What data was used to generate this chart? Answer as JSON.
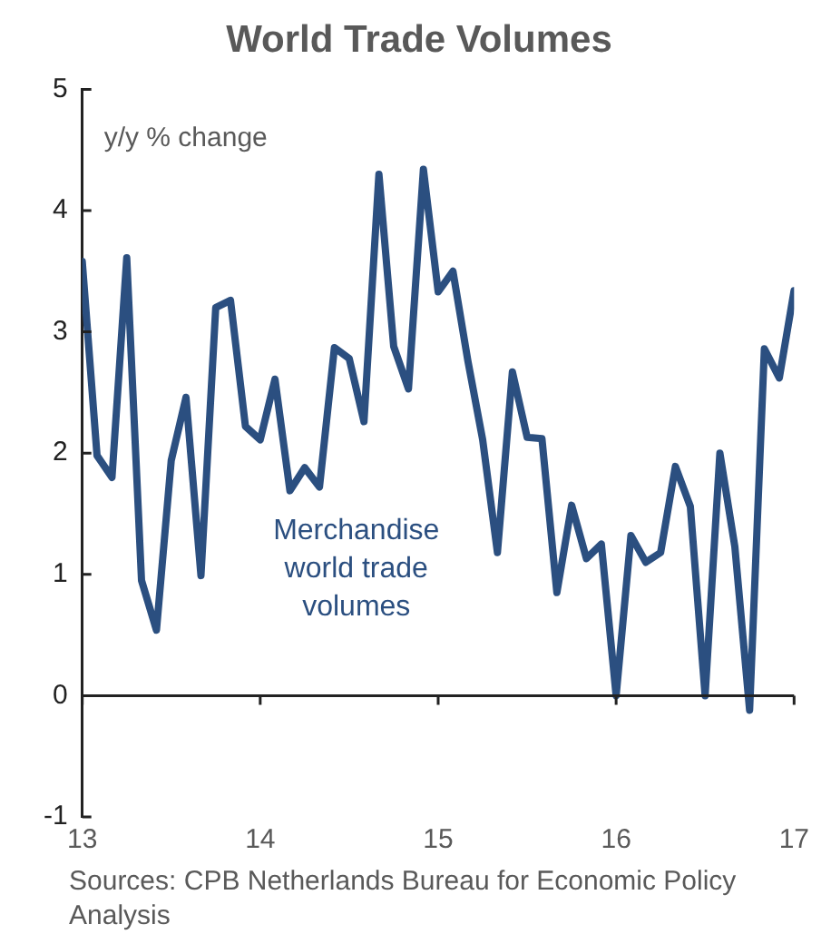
{
  "chart_data": {
    "type": "line",
    "title": "World Trade Volumes",
    "ylabel": "y/y % change",
    "x": [
      13,
      13.083,
      13.167,
      13.25,
      13.333,
      13.417,
      13.5,
      13.583,
      13.667,
      13.75,
      13.833,
      13.917,
      14,
      14.083,
      14.167,
      14.25,
      14.333,
      14.417,
      14.5,
      14.583,
      14.667,
      14.75,
      14.833,
      14.917,
      15,
      15.083,
      15.167,
      15.25,
      15.333,
      15.417,
      15.5,
      15.583,
      15.667,
      15.75,
      15.833,
      15.917,
      16,
      16.083,
      16.167,
      16.25,
      16.333,
      16.417,
      16.5,
      16.583,
      16.667,
      16.75,
      16.833,
      16.917,
      17
    ],
    "series": [
      {
        "name": "Merchandise world trade volumes",
        "color": "#2b4f80",
        "values": [
          3.58,
          1.98,
          1.8,
          3.61,
          0.95,
          0.54,
          1.94,
          2.46,
          0.99,
          3.2,
          3.26,
          2.22,
          2.11,
          2.61,
          1.69,
          1.88,
          1.72,
          2.87,
          2.78,
          2.26,
          4.3,
          2.88,
          2.53,
          4.34,
          3.33,
          3.5,
          2.76,
          2.11,
          1.18,
          2.67,
          2.13,
          2.12,
          0.85,
          1.57,
          1.13,
          1.25,
          0,
          1.32,
          1.1,
          1.18,
          1.89,
          1.56,
          0,
          2,
          1.23,
          -0.12,
          2.86,
          2.62,
          3.34
        ]
      }
    ],
    "xlim": [
      13,
      17
    ],
    "xticks": [
      13,
      14,
      15,
      16,
      17
    ],
    "ylim": [
      -1,
      5
    ],
    "yticks": [
      -1,
      0,
      1,
      2,
      3,
      4,
      5
    ],
    "legend": false,
    "marker": "none",
    "line_style": "solid",
    "annotations": [
      "Sources: CPB Netherlands Bureau for Economic Policy Analysis"
    ]
  }
}
